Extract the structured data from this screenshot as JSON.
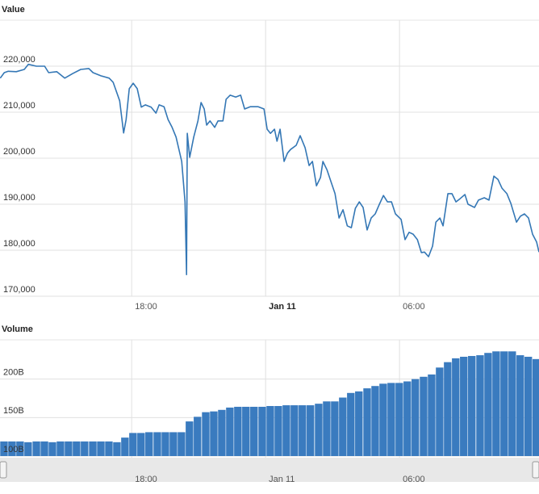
{
  "chart_data": [
    {
      "type": "line",
      "title": "Value",
      "color": "#3477b5",
      "grid": true,
      "xlim": [
        -11.9,
        12.25
      ],
      "xticks": [
        {
          "value": -6,
          "label": "18:00"
        },
        {
          "value": 0,
          "label": "Jan 11"
        },
        {
          "value": 6,
          "label": "06:00"
        }
      ],
      "ylim": [
        170000,
        230000
      ],
      "yticks": [
        {
          "value": 170000,
          "label": "170,000"
        },
        {
          "value": 180000,
          "label": "180,000"
        },
        {
          "value": 190000,
          "label": "190,000"
        },
        {
          "value": 200000,
          "label": "200,000"
        },
        {
          "value": 210000,
          "label": "210,000"
        },
        {
          "value": 220000,
          "label": "220,000"
        }
      ],
      "x": [
        -11.89,
        -11.71,
        -11.53,
        -11.17,
        -10.81,
        -10.63,
        -10.27,
        -9.9,
        -9.72,
        -9.36,
        -9.0,
        -8.64,
        -8.28,
        -7.92,
        -7.73,
        -7.37,
        -7.01,
        -6.83,
        -6.54,
        -6.36,
        -6.25,
        -6.11,
        -5.93,
        -5.75,
        -5.57,
        -5.39,
        -5.13,
        -4.91,
        -4.77,
        -4.55,
        -4.37,
        -4.19,
        -4.01,
        -3.76,
        -3.61,
        -3.54,
        -3.51,
        -3.4,
        -3.22,
        -3.03,
        -2.89,
        -2.75,
        -2.64,
        -2.49,
        -2.28,
        -2.13,
        -1.91,
        -1.77,
        -1.59,
        -1.34,
        -1.12,
        -0.94,
        -0.69,
        -0.33,
        -0.07,
        0.07,
        0.22,
        0.4,
        0.51,
        0.65,
        0.83,
        0.98,
        1.12,
        1.37,
        1.55,
        1.77,
        1.95,
        2.1,
        2.28,
        2.46,
        2.57,
        2.75,
        2.93,
        3.11,
        3.29,
        3.47,
        3.66,
        3.84,
        4.02,
        4.2,
        4.37,
        4.55,
        4.73,
        4.91,
        5.1,
        5.28,
        5.46,
        5.64,
        5.82,
        6.07,
        6.25,
        6.43,
        6.61,
        6.8,
        6.98,
        7.12,
        7.3,
        7.48,
        7.63,
        7.81,
        7.95,
        8.17,
        8.35,
        8.53,
        8.71,
        8.93,
        9.07,
        9.36,
        9.54,
        9.8,
        10.01,
        10.23,
        10.41,
        10.59,
        10.81,
        10.99,
        11.24,
        11.42,
        11.6,
        11.78,
        11.96,
        12.14,
        12.25
      ],
      "values": [
        217400,
        218600,
        218900,
        218800,
        219300,
        220400,
        220000,
        220000,
        218600,
        218800,
        217400,
        218400,
        219300,
        219500,
        218600,
        217900,
        217400,
        216500,
        212500,
        205500,
        208400,
        215100,
        216300,
        215100,
        211100,
        211600,
        211100,
        209800,
        211600,
        211200,
        208400,
        206700,
        204600,
        199300,
        190500,
        174700,
        205400,
        200200,
        204600,
        208100,
        212100,
        210700,
        207200,
        208100,
        206700,
        208100,
        208100,
        212800,
        213700,
        213300,
        213700,
        210700,
        211200,
        211200,
        210700,
        206300,
        205400,
        206300,
        203700,
        206300,
        199300,
        201100,
        201900,
        202800,
        204900,
        202300,
        198400,
        199300,
        194000,
        195800,
        199300,
        197500,
        194900,
        192300,
        187000,
        188800,
        185300,
        184900,
        189100,
        190500,
        189300,
        184400,
        187000,
        187900,
        190000,
        191900,
        190500,
        190500,
        187900,
        186700,
        182300,
        183900,
        183500,
        182300,
        179500,
        179600,
        178600,
        180900,
        186100,
        187000,
        185300,
        192300,
        192300,
        190500,
        191200,
        192100,
        190000,
        189300,
        190900,
        191400,
        190900,
        196100,
        195400,
        193500,
        192300,
        190200,
        186100,
        187400,
        187900,
        187000,
        183500,
        181800,
        179600
      ]
    },
    {
      "type": "bar",
      "title": "Volume",
      "color": "#3a7bbf",
      "grid": true,
      "xlim": [
        -11.9,
        12.25
      ],
      "xticks": [
        {
          "value": -6,
          "label": "18:00"
        },
        {
          "value": 0,
          "label": "Jan 11"
        },
        {
          "value": 6,
          "label": "06:00"
        }
      ],
      "ylim": [
        100,
        251
      ],
      "yticks": [
        {
          "value": 100,
          "label": "100B"
        },
        {
          "value": 150,
          "label": "150B"
        },
        {
          "value": 200,
          "label": "200B"
        }
      ],
      "x": [
        -11.71,
        -11.35,
        -10.99,
        -10.63,
        -10.26,
        -9.9,
        -9.54,
        -9.18,
        -8.82,
        -8.46,
        -8.1,
        -7.73,
        -7.37,
        -7.01,
        -6.65,
        -6.29,
        -5.93,
        -5.57,
        -5.21,
        -4.84,
        -4.48,
        -4.12,
        -3.76,
        -3.4,
        -3.04,
        -2.67,
        -2.31,
        -1.95,
        -1.59,
        -1.23,
        -0.87,
        -0.51,
        -0.14,
        0.22,
        0.58,
        0.94,
        1.3,
        1.66,
        2.02,
        2.39,
        2.75,
        3.11,
        3.47,
        3.83,
        4.19,
        4.56,
        4.92,
        5.28,
        5.64,
        6.0,
        6.36,
        6.72,
        7.09,
        7.45,
        7.81,
        8.17,
        8.53,
        8.89,
        9.25,
        9.62,
        9.98,
        10.34,
        10.7,
        11.06,
        11.42,
        11.78,
        12.14
      ],
      "values": [
        119,
        119,
        119,
        118,
        119,
        119,
        118,
        119,
        119,
        119,
        119,
        119,
        119,
        119,
        118,
        124,
        130,
        130,
        131,
        131,
        131,
        131,
        131,
        145,
        151,
        157,
        158,
        160,
        163,
        164,
        164,
        164,
        164,
        165,
        165,
        166,
        166,
        166,
        166,
        168,
        171,
        171,
        176,
        182,
        184,
        188,
        191,
        194,
        195,
        195,
        197,
        200,
        203,
        206,
        215,
        222,
        227,
        229,
        230,
        231,
        234,
        236,
        236,
        236,
        231,
        229,
        226
      ]
    }
  ]
}
